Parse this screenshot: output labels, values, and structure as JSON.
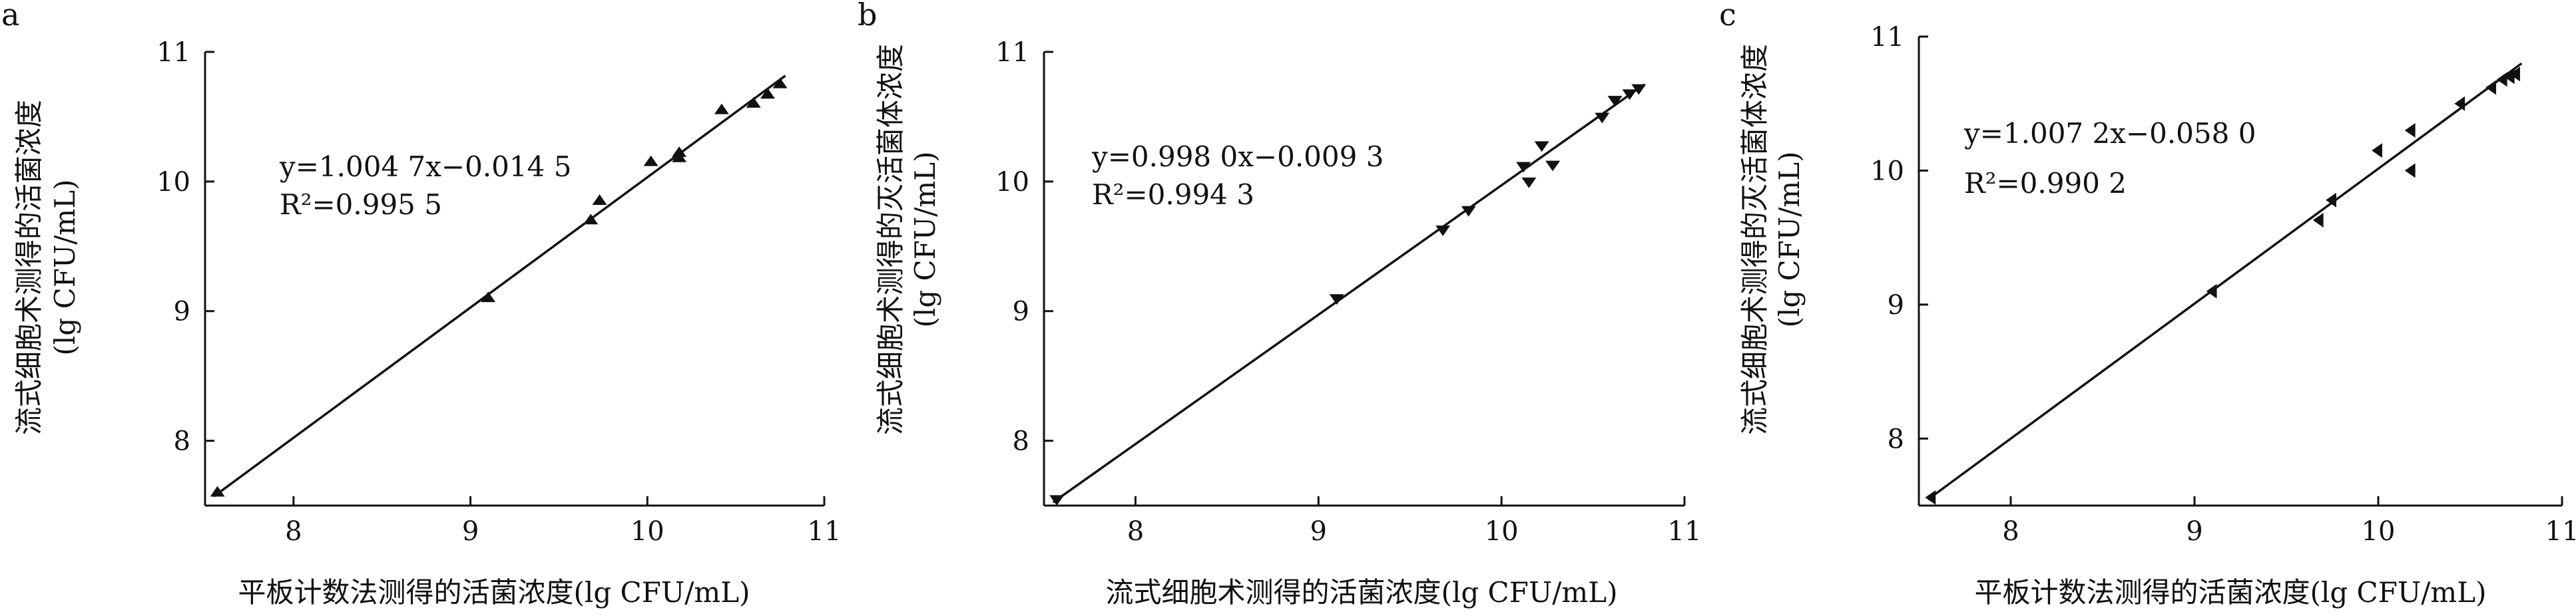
{
  "figure": {
    "panels": [
      {
        "letter": "a",
        "ylabel": "流式细胞术测得的活菌浓度",
        "ylabel_unit": "(lg CFU/mL)",
        "xlabel": "平板计数法测得的活菌浓度(lg CFU/mL)",
        "equation": "y=1.004 7x−0.014 5",
        "r2": "R²=0.995 5"
      },
      {
        "letter": "b",
        "ylabel": "流式细胞术测得的灭活菌体浓度",
        "ylabel_unit": "(lg CFU/mL)",
        "xlabel": "流式细胞术测得的活菌浓度(lg CFU/mL)",
        "equation": "y=0.998 0x−0.009 3",
        "r2": "R²=0.994 3"
      },
      {
        "letter": "c",
        "ylabel": "流式细胞术测得的灭活菌体浓度",
        "ylabel_unit": "(lg CFU/mL)",
        "xlabel": "平板计数法测得的活菌浓度(lg CFU/mL)",
        "equation": "y=1.007 2x−0.058 0",
        "r2": "R²=0.990 2"
      }
    ]
  },
  "chart_data": [
    {
      "type": "scatter",
      "panel": "a",
      "marker": "triangle-up",
      "xlabel": "平板计数法测得的活菌浓度(lg CFU/mL)",
      "ylabel": "流式细胞术测得的活菌浓度 (lg CFU/mL)",
      "xlim": [
        7.5,
        11
      ],
      "ylim": [
        7.5,
        11
      ],
      "xticks": [
        8,
        9,
        10,
        11
      ],
      "yticks": [
        8,
        9,
        10,
        11
      ],
      "grid": false,
      "points": [
        [
          7.57,
          7.6
        ],
        [
          9.1,
          9.1
        ],
        [
          9.68,
          9.7
        ],
        [
          9.73,
          9.85
        ],
        [
          10.02,
          10.15
        ],
        [
          10.18,
          10.18
        ],
        [
          10.18,
          10.22
        ],
        [
          10.42,
          10.55
        ],
        [
          10.6,
          10.6
        ],
        [
          10.68,
          10.67
        ],
        [
          10.75,
          10.75
        ]
      ],
      "fit": {
        "slope": 1.0047,
        "intercept": -0.0145,
        "r2": 0.9955,
        "x_range": [
          7.55,
          10.78
        ]
      }
    },
    {
      "type": "scatter",
      "panel": "b",
      "marker": "triangle-down",
      "xlabel": "流式细胞术测得的活菌浓度(lg CFU/mL)",
      "ylabel": "流式细胞术测得的灭活菌体浓度 (lg CFU/mL)",
      "xlim": [
        7.5,
        11
      ],
      "ylim": [
        7.5,
        11
      ],
      "xticks": [
        8,
        9,
        10,
        11
      ],
      "yticks": [
        8,
        9,
        10,
        11
      ],
      "grid": false,
      "points": [
        [
          7.57,
          7.55
        ],
        [
          9.1,
          9.1
        ],
        [
          9.68,
          9.63
        ],
        [
          9.82,
          9.78
        ],
        [
          10.12,
          10.12
        ],
        [
          10.15,
          10.0
        ],
        [
          10.22,
          10.28
        ],
        [
          10.28,
          10.13
        ],
        [
          10.55,
          10.5
        ],
        [
          10.62,
          10.63
        ],
        [
          10.7,
          10.68
        ],
        [
          10.75,
          10.72
        ]
      ],
      "fit": {
        "slope": 0.998,
        "intercept": -0.0093,
        "r2": 0.9943,
        "x_range": [
          7.55,
          10.78
        ]
      }
    },
    {
      "type": "scatter",
      "panel": "c",
      "marker": "triangle-left",
      "xlabel": "平板计数法测得的活菌浓度(lg CFU/mL)",
      "ylabel": "流式细胞术测得的灭活菌体浓度 (lg CFU/mL)",
      "xlim": [
        7.5,
        11
      ],
      "ylim": [
        7.5,
        11
      ],
      "xticks": [
        8,
        9,
        10,
        11
      ],
      "yticks": [
        8,
        9,
        10,
        11
      ],
      "grid": false,
      "points": [
        [
          7.57,
          7.56
        ],
        [
          9.1,
          9.1
        ],
        [
          9.68,
          9.63
        ],
        [
          9.75,
          9.78
        ],
        [
          10.0,
          10.15
        ],
        [
          10.18,
          10.0
        ],
        [
          10.18,
          10.3
        ],
        [
          10.45,
          10.5
        ],
        [
          10.62,
          10.62
        ],
        [
          10.68,
          10.68
        ],
        [
          10.72,
          10.7
        ],
        [
          10.75,
          10.72
        ]
      ],
      "fit": {
        "slope": 1.0072,
        "intercept": -0.058,
        "r2": 0.9902,
        "x_range": [
          7.55,
          10.78
        ]
      }
    }
  ]
}
